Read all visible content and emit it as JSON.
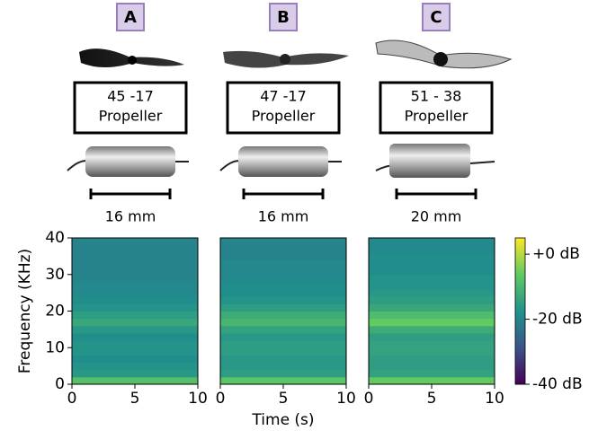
{
  "panels": [
    {
      "label": "A",
      "propeller": [
        "45 -17",
        "Propeller"
      ],
      "motor_size": "16 mm"
    },
    {
      "label": "B",
      "propeller": [
        "47 -17",
        "Propeller"
      ],
      "motor_size": "16 mm"
    },
    {
      "label": "C",
      "propeller": [
        "51 - 38",
        "Propeller"
      ],
      "motor_size": "20 mm"
    }
  ],
  "chart_data": {
    "type": "heatmap",
    "x_label": "Time (s)",
    "y_label": "Frequency (KHz)",
    "xlim": [
      0,
      10
    ],
    "xticks": [
      0,
      5,
      10
    ],
    "ylim": [
      0,
      40
    ],
    "yticks": [
      0,
      10,
      20,
      30,
      40
    ],
    "y_bins": [
      0,
      2,
      4,
      6,
      8,
      10,
      12,
      14,
      16,
      18,
      20,
      22,
      24,
      26,
      28,
      30,
      32,
      34,
      36,
      38,
      40
    ],
    "maps": [
      {
        "values": [
          -8,
          -16,
          -17,
          -18,
          -17,
          -17,
          -18,
          -16,
          -13,
          -15,
          -17,
          -18,
          -19,
          -19,
          -20,
          -20,
          -20,
          -20,
          -20,
          -20
        ]
      },
      {
        "values": [
          -7,
          -15,
          -16,
          -16,
          -15,
          -15,
          -16,
          -14,
          -10,
          -12,
          -15,
          -17,
          -18,
          -18,
          -19,
          -19,
          -19,
          -20,
          -20,
          -20
        ]
      },
      {
        "values": [
          -6,
          -14,
          -15,
          -15,
          -14,
          -14,
          -15,
          -12,
          -6,
          -9,
          -13,
          -15,
          -16,
          -17,
          -17,
          -18,
          -18,
          -18,
          -19,
          -19
        ]
      }
    ],
    "clim": [
      -40,
      5
    ],
    "cticks": [
      {
        "value": 0,
        "label": "+0 dB"
      },
      {
        "value": -20,
        "label": "-20 dB"
      },
      {
        "value": -40,
        "label": "-40 dB"
      }
    ],
    "colormap": [
      "#440154",
      "#3b528b",
      "#21918c",
      "#5ec962",
      "#fde725"
    ]
  }
}
